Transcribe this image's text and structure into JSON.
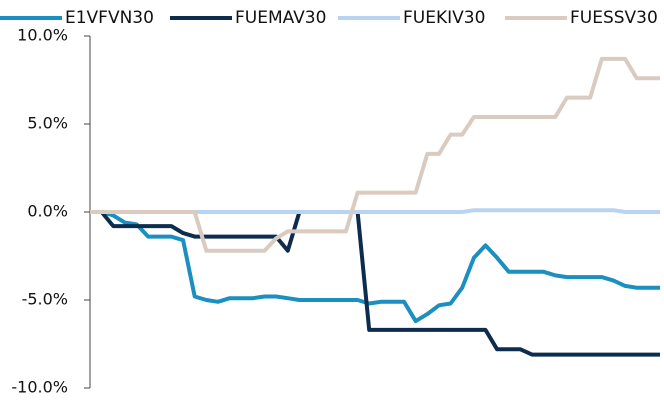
{
  "chart_data": {
    "type": "line",
    "ylim": [
      -10,
      10
    ],
    "yticks": [
      {
        "value": 10,
        "label": "10.0%"
      },
      {
        "value": 5,
        "label": "5.0%"
      },
      {
        "value": 0,
        "label": "0.0%"
      },
      {
        "value": -5,
        "label": "-5.0%"
      },
      {
        "value": -10,
        "label": "-10.0%"
      }
    ],
    "legend": "top",
    "series": [
      {
        "name": "E1VFVN30",
        "color": "#1a8fc0",
        "values": [
          0,
          0,
          -0.2,
          -0.6,
          -0.7,
          -1.4,
          -1.4,
          -1.4,
          -1.6,
          -4.8,
          -5.0,
          -5.1,
          -4.9,
          -4.9,
          -4.9,
          -4.8,
          -4.8,
          -4.9,
          -5.0,
          -5.0,
          -5.0,
          -5.0,
          -5.0,
          -5.0,
          -5.2,
          -5.1,
          -5.1,
          -5.1,
          -6.2,
          -5.8,
          -5.3,
          -5.2,
          -4.3,
          -2.6,
          -1.9,
          -2.6,
          -3.4,
          -3.4,
          -3.4,
          -3.4,
          -3.6,
          -3.7,
          -3.7,
          -3.7,
          -3.7,
          -3.9,
          -4.2,
          -4.3,
          -4.3,
          -4.3
        ]
      },
      {
        "name": "FUEMAV30",
        "color": "#0e2d4e",
        "values": [
          0,
          0,
          -0.8,
          -0.8,
          -0.8,
          -0.8,
          -0.8,
          -0.8,
          -1.2,
          -1.4,
          -1.4,
          -1.4,
          -1.4,
          -1.4,
          -1.4,
          -1.4,
          -1.4,
          -2.2,
          0,
          0,
          0,
          0,
          0,
          0,
          -6.7,
          -6.7,
          -6.7,
          -6.7,
          -6.7,
          -6.7,
          -6.7,
          -6.7,
          -6.7,
          -6.7,
          -6.7,
          -7.8,
          -7.8,
          -7.8,
          -8.1,
          -8.1,
          -8.1,
          -8.1,
          -8.1,
          -8.1,
          -8.1,
          -8.1,
          -8.1,
          -8.1,
          -8.1,
          -8.1
        ]
      },
      {
        "name": "FUEKIV30",
        "color": "#b8d4f0",
        "values": [
          0,
          0,
          0,
          0,
          0,
          0,
          0,
          0,
          0,
          0,
          0,
          0,
          0,
          0,
          0,
          0,
          0,
          0,
          0,
          0,
          0,
          0,
          0,
          0,
          0,
          0,
          0,
          0,
          0,
          0,
          0,
          0,
          0,
          0.1,
          0.1,
          0.1,
          0.1,
          0.1,
          0.1,
          0.1,
          0.1,
          0.1,
          0.1,
          0.1,
          0.1,
          0.1,
          0,
          0,
          0,
          0
        ]
      },
      {
        "name": "FUESSV30",
        "color": "#d9cbbf",
        "values": [
          0,
          0,
          0,
          0,
          0,
          0,
          0,
          0,
          0,
          0,
          -2.2,
          -2.2,
          -2.2,
          -2.2,
          -2.2,
          -2.2,
          -1.5,
          -1.1,
          -1.1,
          -1.1,
          -1.1,
          -1.1,
          -1.1,
          1.1,
          1.1,
          1.1,
          1.1,
          1.1,
          1.1,
          3.3,
          3.3,
          4.4,
          4.4,
          5.4,
          5.4,
          5.4,
          5.4,
          5.4,
          5.4,
          5.4,
          5.4,
          6.5,
          6.5,
          6.5,
          8.7,
          8.7,
          8.7,
          7.6,
          7.6,
          7.6
        ]
      }
    ]
  }
}
